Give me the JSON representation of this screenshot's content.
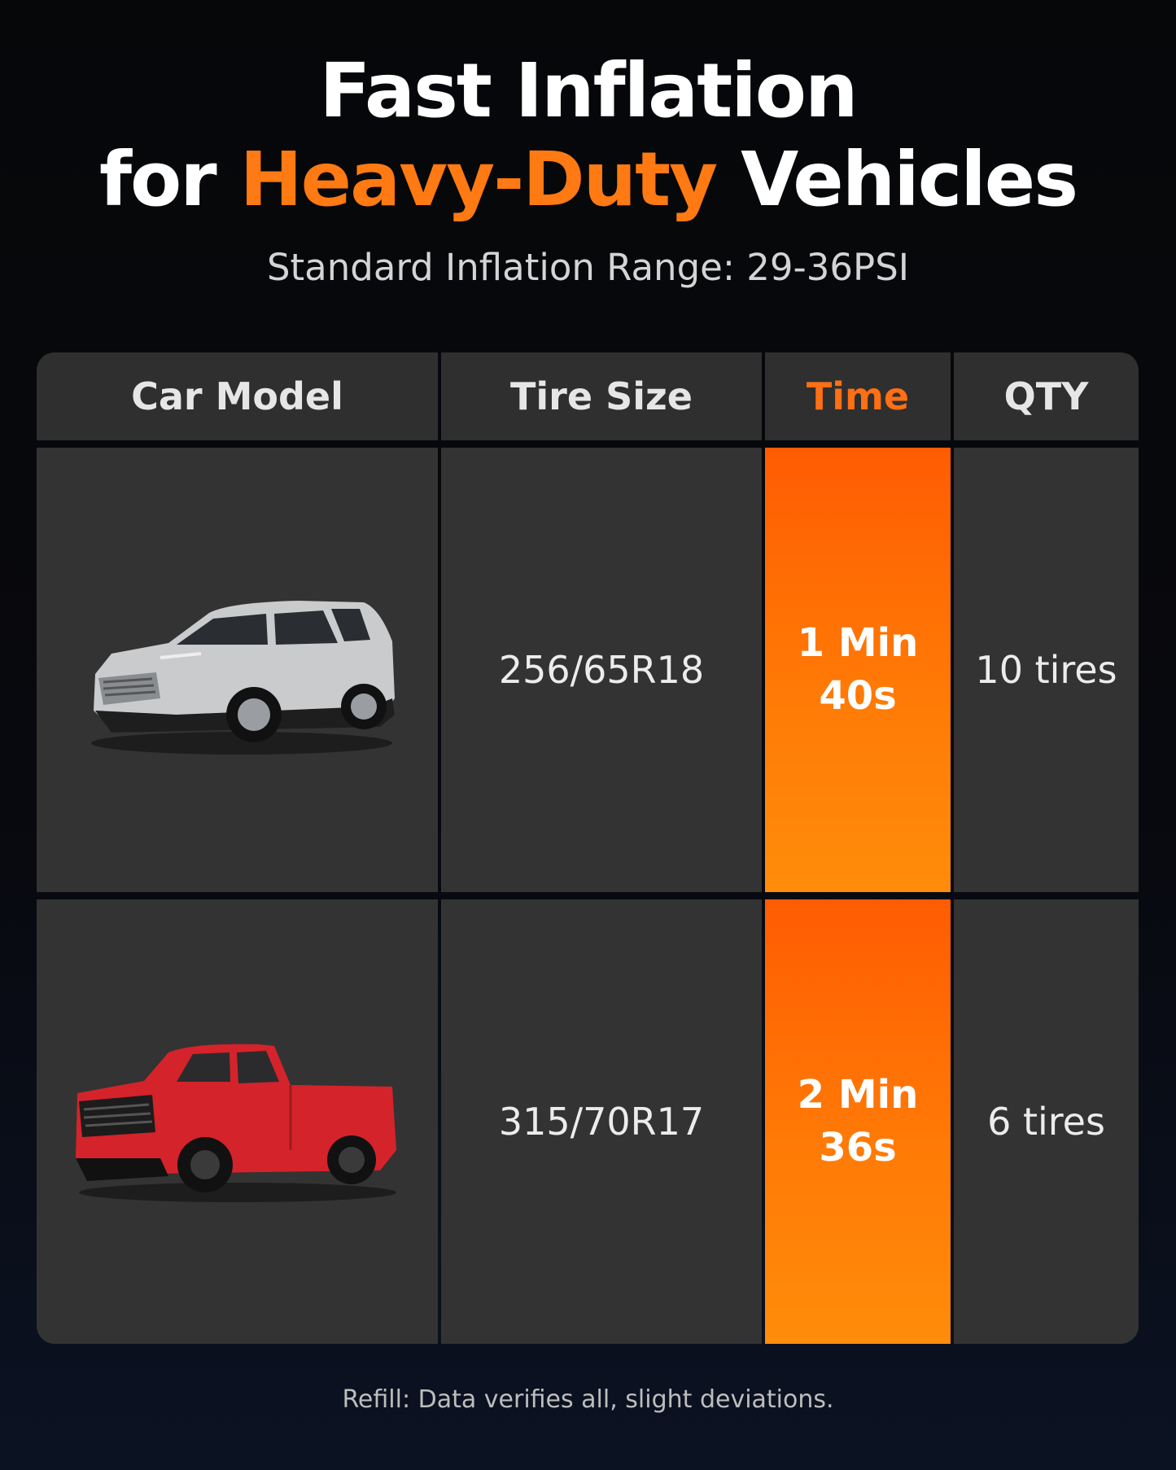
{
  "header": {
    "title_line1": "Fast Inflation",
    "title_line2": {
      "before": "for",
      "highlight": "Heavy-Duty",
      "after": "Vehicles"
    },
    "subtitle": "Standard Inflation Range: 29-36PSI"
  },
  "table": {
    "columns": [
      "Car Model",
      "Tire Size",
      "Time",
      "QTY"
    ],
    "rows": [
      {
        "tire_size": "256/65R18",
        "time": [
          "1 Min",
          "40s"
        ],
        "qty": "10 tires"
      },
      {
        "tire_size": "315/70R17",
        "time": [
          "2 Min",
          "36s"
        ],
        "qty": "6 tires"
      }
    ]
  },
  "footnote": "Refill: Data verifies all, slight deviations."
}
